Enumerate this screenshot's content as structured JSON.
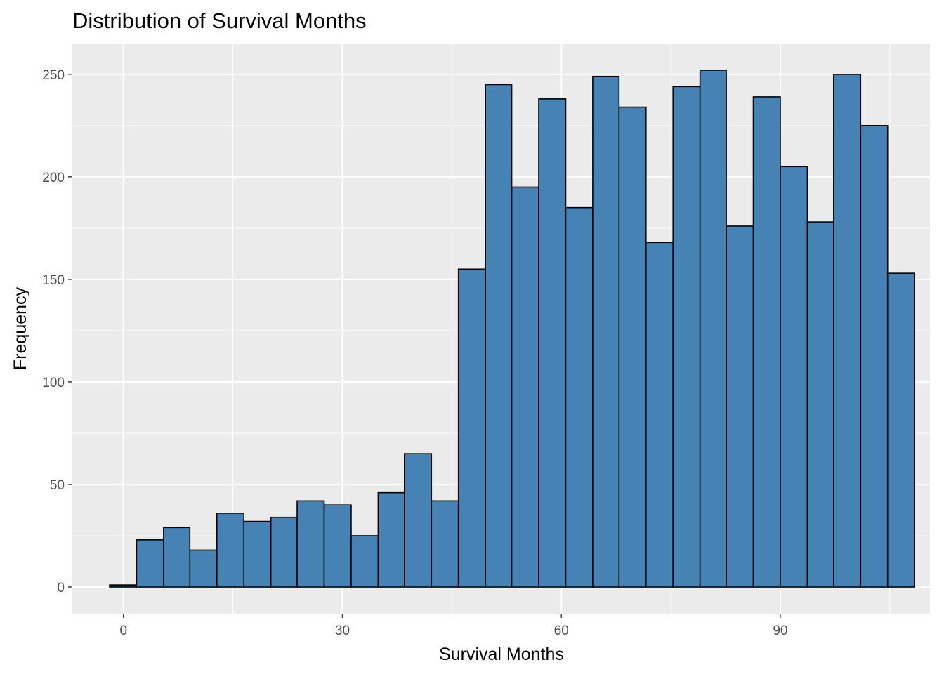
{
  "chart_data": {
    "type": "bar",
    "title": "Distribution of Survival Months",
    "xlabel": "Survival Months",
    "ylabel": "Frequency",
    "x_ticks": [
      0,
      30,
      60,
      90
    ],
    "y_ticks": [
      0,
      50,
      100,
      150,
      200,
      250
    ],
    "xlim": [
      -7,
      110.5
    ],
    "ylim": [
      -13,
      265
    ],
    "grid": true,
    "bar_fill": "#4682b4",
    "bar_outline": "#000000",
    "panel_background": "#ebebeb",
    "bins": [
      {
        "x0": -1.9,
        "x1": 1.8,
        "count": 1
      },
      {
        "x0": 1.8,
        "x1": 5.5,
        "count": 23
      },
      {
        "x0": 5.5,
        "x1": 9.1,
        "count": 29
      },
      {
        "x0": 9.1,
        "x1": 12.8,
        "count": 18
      },
      {
        "x0": 12.8,
        "x1": 16.5,
        "count": 36
      },
      {
        "x0": 16.5,
        "x1": 20.2,
        "count": 32
      },
      {
        "x0": 20.2,
        "x1": 23.8,
        "count": 34
      },
      {
        "x0": 23.8,
        "x1": 27.5,
        "count": 42
      },
      {
        "x0": 27.5,
        "x1": 31.2,
        "count": 40
      },
      {
        "x0": 31.2,
        "x1": 34.9,
        "count": 25
      },
      {
        "x0": 34.9,
        "x1": 38.5,
        "count": 46
      },
      {
        "x0": 38.5,
        "x1": 42.2,
        "count": 65
      },
      {
        "x0": 42.2,
        "x1": 45.9,
        "count": 42
      },
      {
        "x0": 45.9,
        "x1": 49.6,
        "count": 155
      },
      {
        "x0": 49.6,
        "x1": 53.2,
        "count": 245
      },
      {
        "x0": 53.2,
        "x1": 56.9,
        "count": 195
      },
      {
        "x0": 56.9,
        "x1": 60.6,
        "count": 238
      },
      {
        "x0": 60.6,
        "x1": 64.3,
        "count": 185
      },
      {
        "x0": 64.3,
        "x1": 67.9,
        "count": 249
      },
      {
        "x0": 67.9,
        "x1": 71.6,
        "count": 234
      },
      {
        "x0": 71.6,
        "x1": 75.3,
        "count": 168
      },
      {
        "x0": 75.3,
        "x1": 79.0,
        "count": 244
      },
      {
        "x0": 79.0,
        "x1": 82.6,
        "count": 252
      },
      {
        "x0": 82.6,
        "x1": 86.3,
        "count": 176
      },
      {
        "x0": 86.3,
        "x1": 90.0,
        "count": 239
      },
      {
        "x0": 90.0,
        "x1": 93.7,
        "count": 205
      },
      {
        "x0": 93.7,
        "x1": 97.3,
        "count": 178
      },
      {
        "x0": 97.3,
        "x1": 101.0,
        "count": 250
      },
      {
        "x0": 101.0,
        "x1": 104.7,
        "count": 225
      },
      {
        "x0": 104.7,
        "x1": 108.4,
        "count": 153
      }
    ]
  }
}
